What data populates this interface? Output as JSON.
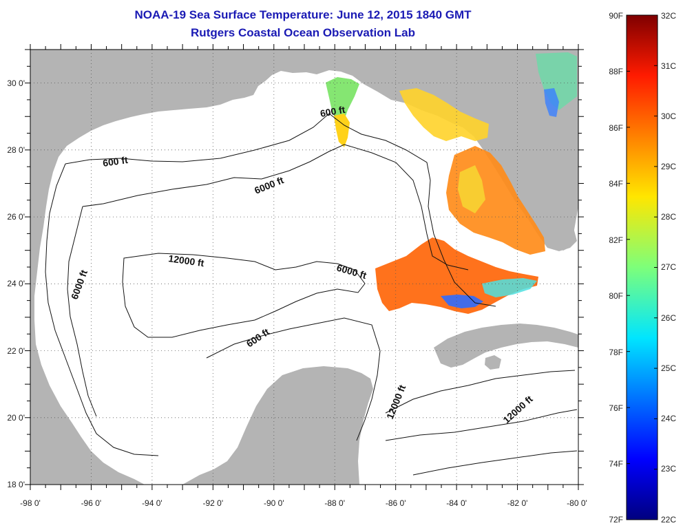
{
  "title": "NOAA-19 Sea Surface Temperature:  June 12, 2015 1840 GMT",
  "subtitle": "Rutgers Coastal Ocean Observation Lab",
  "map": {
    "lon_range": [
      -98,
      -80
    ],
    "lat_range": [
      18,
      31
    ],
    "lon_ticks": [
      "-98 0'",
      "-96 0'",
      "-94 0'",
      "-92 0'",
      "-90 0'",
      "-88 0'",
      "-86 0'",
      "-84 0'",
      "-82 0'",
      "-80 0'"
    ],
    "lat_ticks": [
      "18 0'",
      "20 0'",
      "22 0'",
      "24 0'",
      "26 0'",
      "28 0'",
      "30 0'"
    ],
    "grid": "dotted",
    "land_color": "#b4b4b4",
    "ocean_color": "#ffffff"
  },
  "contour_labels": [
    {
      "text": "600 ft"
    },
    {
      "text": "600 ft"
    },
    {
      "text": "6000 ft"
    },
    {
      "text": "6000 ft"
    },
    {
      "text": "6000 ft"
    },
    {
      "text": "12000 ft"
    },
    {
      "text": "600 ft"
    },
    {
      "text": "12000 ft"
    },
    {
      "text": "12000 ft"
    }
  ],
  "colorbar": {
    "fahrenheit": [
      "90F",
      "88F",
      "86F",
      "84F",
      "82F",
      "80F",
      "78F",
      "76F",
      "74F",
      "72F"
    ],
    "celsius": [
      "32C",
      "31C",
      "30C",
      "29C",
      "28C",
      "27C",
      "26C",
      "25C",
      "24C",
      "23C",
      "22C"
    ],
    "min_c": 22,
    "max_c": 32
  }
}
